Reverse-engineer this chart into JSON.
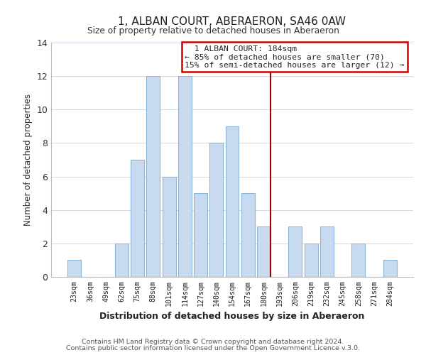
{
  "title": "1, ALBAN COURT, ABERAERON, SA46 0AW",
  "subtitle": "Size of property relative to detached houses in Aberaeron",
  "xlabel": "Distribution of detached houses by size in Aberaeron",
  "ylabel": "Number of detached properties",
  "categories": [
    "23sqm",
    "36sqm",
    "49sqm",
    "62sqm",
    "75sqm",
    "88sqm",
    "101sqm",
    "114sqm",
    "127sqm",
    "140sqm",
    "154sqm",
    "167sqm",
    "180sqm",
    "193sqm",
    "206sqm",
    "219sqm",
    "232sqm",
    "245sqm",
    "258sqm",
    "271sqm",
    "284sqm"
  ],
  "values": [
    1,
    0,
    0,
    2,
    7,
    12,
    6,
    12,
    5,
    8,
    9,
    5,
    3,
    0,
    3,
    2,
    3,
    0,
    2,
    0,
    1
  ],
  "bar_color": "#c8daf0",
  "bar_edge_color": "#8ab4d8",
  "ylim": [
    0,
    14
  ],
  "yticks": [
    0,
    2,
    4,
    6,
    8,
    10,
    12,
    14
  ],
  "vline_x_index": 12,
  "vline_color": "#990000",
  "annotation_title": "1 ALBAN COURT: 184sqm",
  "annotation_line1": "← 85% of detached houses are smaller (70)",
  "annotation_line2": "15% of semi-detached houses are larger (12) →",
  "annotation_box_color": "#ffffff",
  "annotation_box_edge": "#cc0000",
  "footer1": "Contains HM Land Registry data © Crown copyright and database right 2024.",
  "footer2": "Contains public sector information licensed under the Open Government Licence v.3.0.",
  "background_color": "#ffffff",
  "grid_color": "#ccd9e8"
}
